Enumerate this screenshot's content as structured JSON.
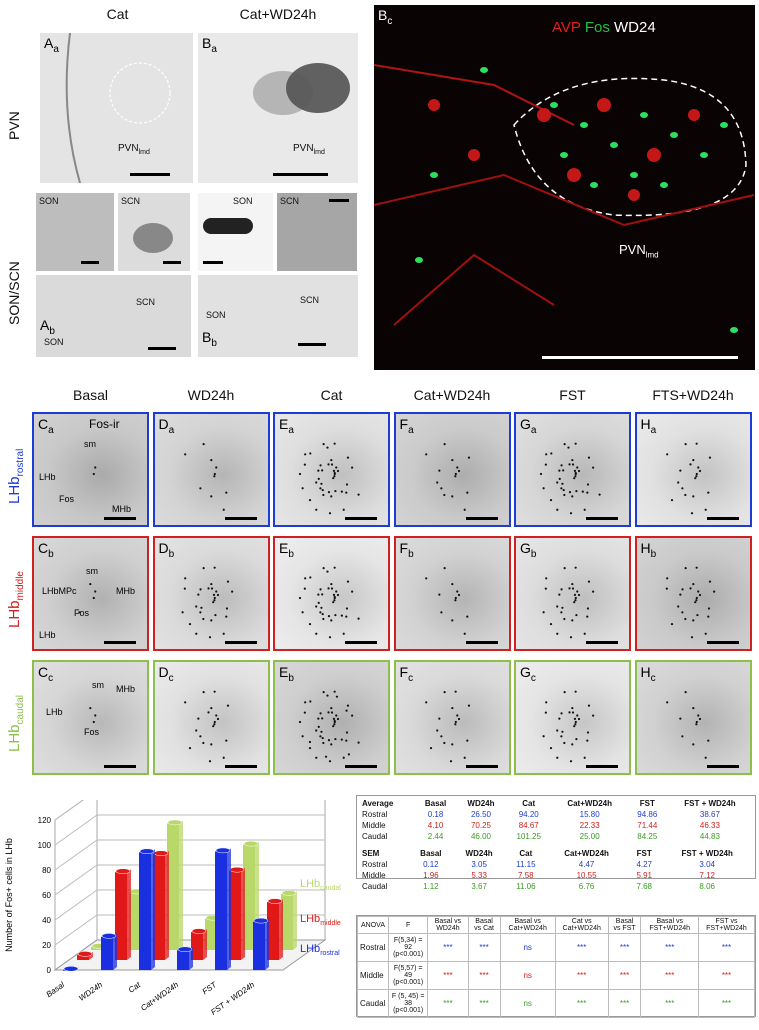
{
  "top": {
    "col_cat": "Cat",
    "col_catwd": "Cat+WD24h",
    "row_pvn": "PVN",
    "row_sonscn": "SON/SCN",
    "Aa": "A",
    "Aa_sub": "a",
    "Ba": "B",
    "Ba_sub": "a",
    "Ab": "A",
    "Ab_sub": "b",
    "Bb": "B",
    "Bb_sub": "b",
    "pvnlmd_a": "PVN",
    "pvnlmd_b": "PVN",
    "lmd": "lmd",
    "son": "SON",
    "scn": "SCN",
    "Bc": "B",
    "Bc_sub": "c",
    "legend_avp": "AVP",
    "legend_fos": "Fos",
    "legend_wd": "WD24",
    "bc_pvn": "PVN",
    "bc_lmd": "lmd"
  },
  "grid": {
    "columns": [
      "Basal",
      "WD24h",
      "Cat",
      "Cat+WD24h",
      "FST",
      "FTS+WD24h"
    ],
    "rows": [
      {
        "name": "LHb",
        "sub": "rostral",
        "color": "#1f3bd6",
        "labels": [
          [
            "C",
            "a"
          ],
          [
            "D",
            "a"
          ],
          [
            "E",
            "a"
          ],
          [
            "F",
            "a"
          ],
          [
            "G",
            "a"
          ],
          [
            "H",
            "a"
          ]
        ]
      },
      {
        "name": "LHb",
        "sub": "middle",
        "color": "#d02020",
        "labels": [
          [
            "C",
            "b"
          ],
          [
            "D",
            "b"
          ],
          [
            "E",
            "b"
          ],
          [
            "F",
            "b"
          ],
          [
            "G",
            "b"
          ],
          [
            "H",
            "b"
          ]
        ]
      },
      {
        "name": "LHb",
        "sub": "caudal",
        "color": "#8cc04a",
        "labels": [
          [
            "C",
            "c"
          ],
          [
            "D",
            "c"
          ],
          [
            "E",
            "b"
          ],
          [
            "F",
            "c"
          ],
          [
            "G",
            "c"
          ],
          [
            "H",
            "c"
          ]
        ]
      }
    ],
    "ann": {
      "fosir": "Fos-ir",
      "sm": "sm",
      "lhb": "LHb",
      "fos": "Fos",
      "mhb": "MHb",
      "lhbmpc": "LHbMPc"
    }
  },
  "chart_data": {
    "type": "bar",
    "title": "",
    "ylabel": "Number of Fos+ cells in LHb",
    "ylim": [
      0,
      120
    ],
    "yticks": [
      0,
      20,
      40,
      60,
      80,
      100,
      120
    ],
    "categories": [
      "Basal",
      "WD24h",
      "Cat",
      "Cat+WD24h",
      "FST",
      "FST + WD24h"
    ],
    "series": [
      {
        "name": "LHbcaudal",
        "color": "#b8d86a",
        "values": [
          2.44,
          46.0,
          101.25,
          25.0,
          84.25,
          44.83
        ]
      },
      {
        "name": "LHbmiddle",
        "color": "#e01818",
        "values": [
          4.1,
          70.25,
          84.67,
          22.33,
          71.44,
          46.33
        ]
      },
      {
        "name": "LHbrostral",
        "color": "#1a2fe0",
        "values": [
          0.18,
          26.5,
          94.2,
          15.8,
          94.86,
          38.67
        ]
      }
    ],
    "legend": [
      "LHb",
      "LHb",
      "LHb"
    ],
    "legend_sub": [
      "caudal",
      "middle",
      "rostral"
    ]
  },
  "avg_table": {
    "headers": [
      "Average",
      "Basal",
      "WD24h",
      "Cat",
      "Cat+WD24h",
      "FST",
      "FST + WD24h"
    ],
    "rows": [
      {
        "label": "Rostral",
        "cls": "blue",
        "v": [
          "0.18",
          "26.50",
          "94.20",
          "15.80",
          "94.86",
          "38.67"
        ]
      },
      {
        "label": "Middle",
        "cls": "red",
        "v": [
          "4.10",
          "70.25",
          "84.67",
          "22.33",
          "71.44",
          "46.33"
        ]
      },
      {
        "label": "Caudal",
        "cls": "green",
        "v": [
          "2.44",
          "46.00",
          "101.25",
          "25.00",
          "84.25",
          "44.83"
        ]
      }
    ]
  },
  "sem_table": {
    "headers": [
      "SEM",
      "Basal",
      "WD24h",
      "Cat",
      "Cat+WD24h",
      "FST",
      "FST + WD24h"
    ],
    "rows": [
      {
        "label": "Rostral",
        "cls": "blue",
        "v": [
          "0.12",
          "3.05",
          "11.15",
          "4.47",
          "4.27",
          "3.04"
        ]
      },
      {
        "label": "Middle",
        "cls": "red",
        "v": [
          "1.96",
          "5.33",
          "7.58",
          "10.55",
          "5.91",
          "7.12"
        ]
      },
      {
        "label": "Caudal",
        "cls": "green",
        "v": [
          "1.12",
          "3.67",
          "11.06",
          "6.76",
          "7.68",
          "8.06"
        ]
      }
    ]
  },
  "anova_table": {
    "headers": [
      "ANOVA",
      "F",
      "Basal vs WD24h",
      "Basal vs Cat",
      "Basal vs Cat+WD24h",
      "Cat vs Cat+WD24h",
      "Basal vs FST",
      "Basal vs FST+WD24h",
      "FST vs FST+WD24h"
    ],
    "rows": [
      {
        "label": "Rostral",
        "cls": "blue",
        "f": "F(5,34) = 92",
        "p": "(p<0.001)",
        "v": [
          "***",
          "***",
          "ns",
          "***",
          "***",
          "***",
          "***"
        ]
      },
      {
        "label": "Middle",
        "cls": "red",
        "f": "F(5,57) = 49",
        "p": "(p<0.001)",
        "v": [
          "***",
          "***",
          "ns",
          "***",
          "***",
          "***",
          "***"
        ]
      },
      {
        "label": "Caudal",
        "cls": "green",
        "f": "F (5, 45) = 38",
        "p": "(p<0.001)",
        "v": [
          "***",
          "***",
          "ns",
          "***",
          "***",
          "***",
          "***"
        ]
      }
    ]
  }
}
